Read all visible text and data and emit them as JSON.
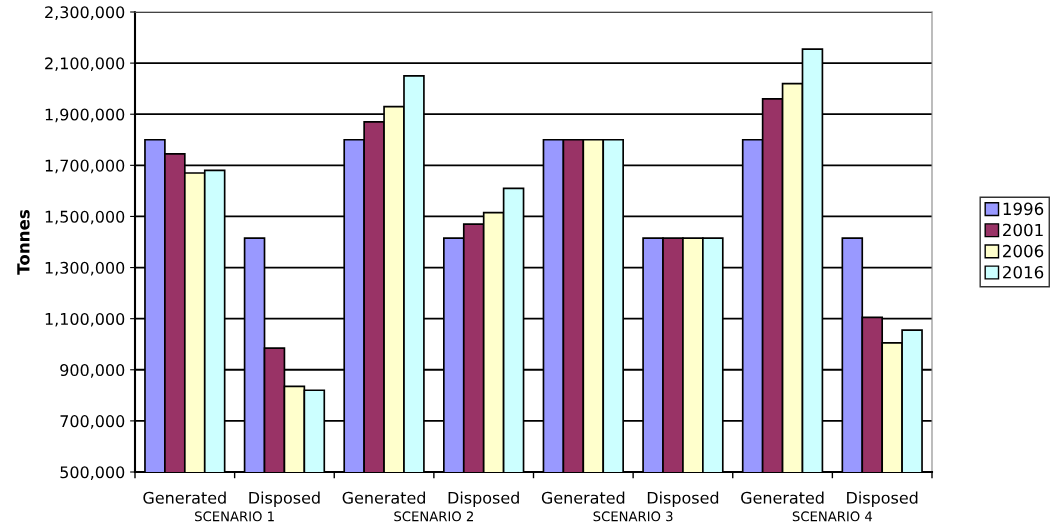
{
  "chart_data": {
    "type": "bar",
    "ylabel": "Tonnes",
    "categories": [
      "Generated",
      "Disposed",
      "Generated",
      "Disposed",
      "Generated",
      "Disposed",
      "Generated",
      "Disposed"
    ],
    "series": [
      {
        "name": "1996",
        "color": "#9999ff",
        "values": [
          1800000,
          1415000,
          1800000,
          1415000,
          1800000,
          1415000,
          1800000,
          1415000
        ]
      },
      {
        "name": "2001",
        "color": "#993366",
        "values": [
          1745000,
          985000,
          1870000,
          1470000,
          1800000,
          1415000,
          1960000,
          1105000
        ]
      },
      {
        "name": "2006",
        "color": "#ffffcc",
        "values": [
          1670000,
          835000,
          1930000,
          1515000,
          1800000,
          1415000,
          2020000,
          1005000
        ]
      },
      {
        "name": "2016",
        "color": "#ccffff",
        "values": [
          1680000,
          820000,
          2050000,
          1610000,
          1800000,
          1415000,
          2155000,
          1055000
        ]
      }
    ],
    "ylim": [
      500000,
      2300000
    ],
    "yticks": [
      {
        "value": 500000,
        "label": "500,000"
      },
      {
        "value": 700000,
        "label": "700,000"
      },
      {
        "value": 900000,
        "label": "900,000"
      },
      {
        "value": 1100000,
        "label": "1,100,000"
      },
      {
        "value": 1300000,
        "label": "1,300,000"
      },
      {
        "value": 1500000,
        "label": "1,500,000"
      },
      {
        "value": 1700000,
        "label": "1,700,000"
      },
      {
        "value": 1900000,
        "label": "1,900,000"
      },
      {
        "value": 2100000,
        "label": "2,100,000"
      },
      {
        "value": 2300000,
        "label": "2,300,000"
      }
    ],
    "grid": "y",
    "legend": "right",
    "annotations": [
      "SCENARIO 1",
      "SCENARIO 2",
      "SCENARIO 3",
      "SCENARIO 4"
    ]
  }
}
